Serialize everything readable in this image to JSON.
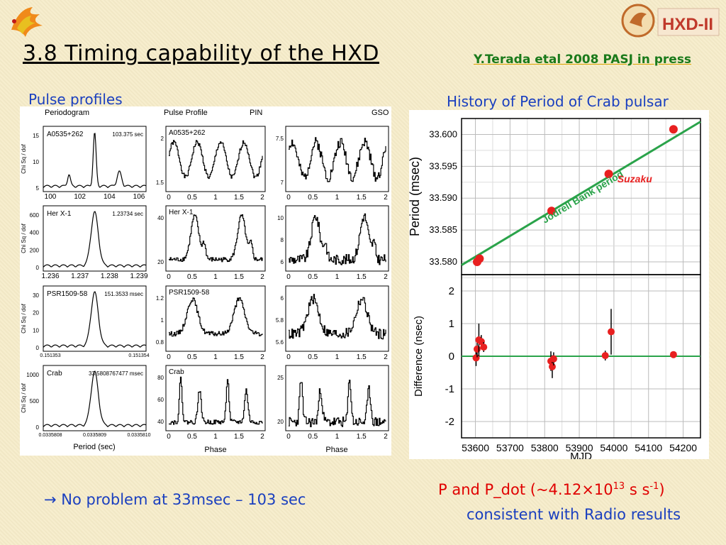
{
  "slide": {
    "title": "3.8 Timing capability of the HXD",
    "citation": "Y.Terada etal 2008 PASJ in press",
    "left_heading": "Pulse profiles",
    "right_heading": "History of Period of Crab pulsar",
    "note_left": "No problem at 33msec – 103 sec",
    "note_left_arrow": "→",
    "note_right_line1_a": "P and P_dot (~4.12×10",
    "note_right_line1_sup1": "13",
    "note_right_line1_b": " s s",
    "note_right_line1_sup2": "-1",
    "note_right_line1_c": ")",
    "note_right_line2": "consistent with Radio results",
    "logo_text": "HXD-II"
  },
  "pulse_grid": {
    "col_headers": {
      "periodogram": "Periodogram",
      "pulse_profile": "Pulse Profile",
      "pin": "PIN",
      "gso": "GSO"
    },
    "periodogram_ylabel": "Chi Sq / dof",
    "periodogram_xlabel": "Period (sec)",
    "profile_xlabel": "Phase",
    "phase_ticks": [
      "0",
      "0.5",
      "1",
      "1.5",
      "2"
    ],
    "rows": [
      {
        "source": "A0535+262",
        "period": "103.375 sec",
        "period_ticks": [
          "100",
          "102",
          "104",
          "106"
        ],
        "chi_ticks": [
          "15",
          "10",
          "5"
        ],
        "pin_ticks": [
          "2",
          "1.5"
        ],
        "gso_ticks": [
          "7.5",
          "7"
        ]
      },
      {
        "source": "Her X-1",
        "period": "1.23734 sec",
        "period_ticks": [
          "1.236",
          "1.237",
          "1.238",
          "1.239"
        ],
        "chi_ticks": [
          "600",
          "400",
          "200",
          "0"
        ],
        "pin_ticks": [
          "40",
          "20"
        ],
        "gso_ticks": [
          "10",
          "8",
          "6"
        ]
      },
      {
        "source": "PSR1509-58",
        "period": "151.3533 msec",
        "period_ticks": [
          "0.151353",
          "0.151354"
        ],
        "chi_ticks": [
          "30",
          "20",
          "10",
          "0"
        ],
        "pin_ticks": [
          "1.2",
          "1",
          "0.8"
        ],
        "gso_ticks": [
          "6",
          "5.8",
          "5.6"
        ]
      },
      {
        "source": "Crab",
        "period": "33.5808767477 msec",
        "period_ticks": [
          "0.0335808",
          "0.0335809",
          "0.0335810"
        ],
        "chi_ticks": [
          "1000",
          "500",
          "0"
        ],
        "pin_ticks": [
          "80",
          "60",
          "40"
        ],
        "gso_ticks": [
          "25",
          "20"
        ]
      }
    ]
  },
  "chart_data": [
    {
      "type": "line",
      "title": "History of Period of Crab pulsar",
      "xlabel": "MJD",
      "ylabel": "Period (msec)",
      "xlim": [
        53560,
        54250
      ],
      "ylim": [
        33.578,
        33.6025
      ],
      "x_ticks": [
        53600,
        53700,
        53800,
        53900,
        54000,
        54100,
        54200
      ],
      "y_ticks": [
        "33.580",
        "33.585",
        "33.590",
        "33.595",
        "33.600"
      ],
      "grid": true,
      "series": [
        {
          "name": "Jodrell Bank period",
          "color": "#2aa34a",
          "x": [
            53560,
            54250
          ],
          "y": [
            33.5795,
            33.602
          ]
        },
        {
          "name": "Suzaku",
          "color": "#e82020",
          "x": [
            53605,
            53612,
            53820,
            53985,
            54172
          ],
          "y": [
            33.58,
            33.5805,
            33.588,
            33.5938,
            33.6008
          ]
        }
      ],
      "annotations": [
        "Jodrell Bank period",
        "Suzaku"
      ]
    },
    {
      "type": "scatter",
      "xlabel": "MJD",
      "ylabel": "Difference (nsec)",
      "xlim": [
        53560,
        54250
      ],
      "ylim": [
        -2.5,
        2.5
      ],
      "x_ticks": [
        53600,
        53700,
        53800,
        53900,
        54000,
        54100,
        54200
      ],
      "y_ticks": [
        2,
        1,
        0,
        -1,
        -2
      ],
      "grid": true,
      "zero_line": true,
      "points": [
        {
          "x": 53602,
          "y": -0.05,
          "err": 0.25
        },
        {
          "x": 53605,
          "y": 0.22,
          "err": 0.25
        },
        {
          "x": 53610,
          "y": 0.5,
          "err": 0.5
        },
        {
          "x": 53617,
          "y": 0.45,
          "err": 0.2
        },
        {
          "x": 53624,
          "y": 0.28,
          "err": 0.15
        },
        {
          "x": 53818,
          "y": -0.15,
          "err": 0.3
        },
        {
          "x": 53822,
          "y": -0.32,
          "err": 0.35
        },
        {
          "x": 53826,
          "y": -0.08,
          "err": 0.2
        },
        {
          "x": 53975,
          "y": 0.02,
          "err": 0.15
        },
        {
          "x": 53992,
          "y": 0.75,
          "err": 0.7
        },
        {
          "x": 54172,
          "y": 0.05,
          "err": 0.05
        }
      ]
    }
  ],
  "colors": {
    "title_blue": "#1a3fbf",
    "citation_green": "#1a7a1a",
    "note_red": "#e00000",
    "fit_green": "#2aa34a",
    "point_red": "#e82020"
  }
}
